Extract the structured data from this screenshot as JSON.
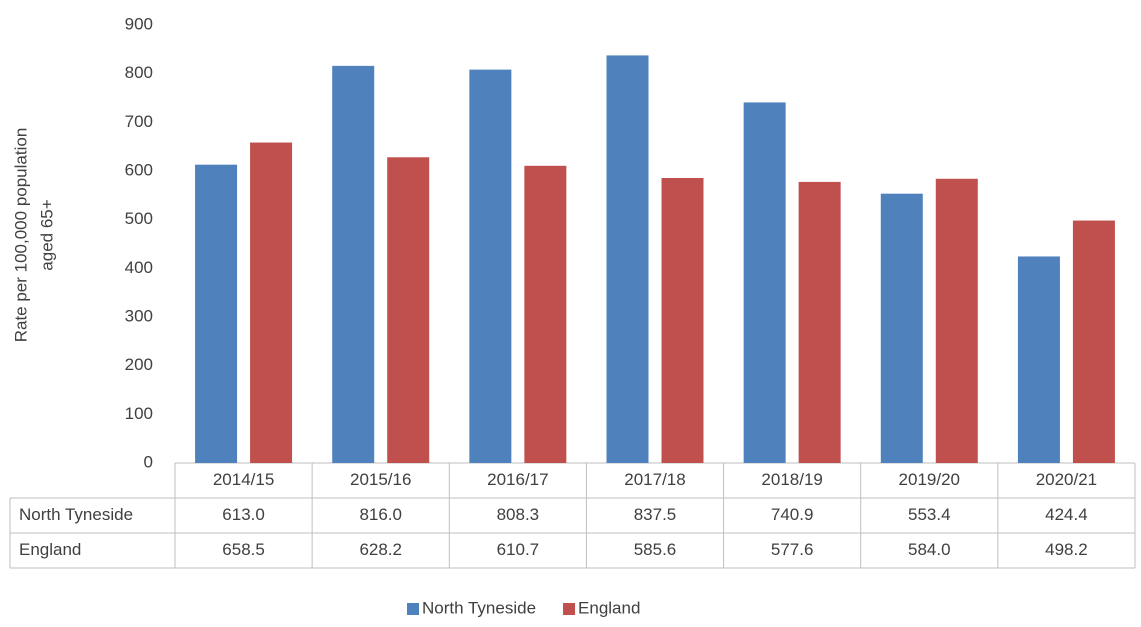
{
  "chart_data": {
    "type": "bar",
    "y_label": [
      "Rate per 100,000 population",
      "aged 65+"
    ],
    "categories": [
      "2014/15",
      "2015/16",
      "2016/17",
      "2017/18",
      "2018/19",
      "2019/20",
      "2020/21"
    ],
    "series": [
      {
        "name": "North Tyneside",
        "color": "#4f81bd",
        "values": [
          613.0,
          816.0,
          808.3,
          837.5,
          740.9,
          553.4,
          424.4
        ],
        "value_labels": [
          "613.0",
          "816.0",
          "808.3",
          "837.5",
          "740.9",
          "553.4",
          "424.4"
        ]
      },
      {
        "name": "England",
        "color": "#c0504d",
        "values": [
          658.5,
          628.2,
          610.7,
          585.6,
          577.6,
          584.0,
          498.2
        ],
        "value_labels": [
          "658.5",
          "628.2",
          "610.7",
          "585.6",
          "577.6",
          "584.0",
          "498.2"
        ]
      }
    ],
    "ylim": [
      0,
      900
    ],
    "yticks": [
      0,
      100,
      200,
      300,
      400,
      500,
      600,
      700,
      800,
      900
    ],
    "legend": "bottom"
  }
}
